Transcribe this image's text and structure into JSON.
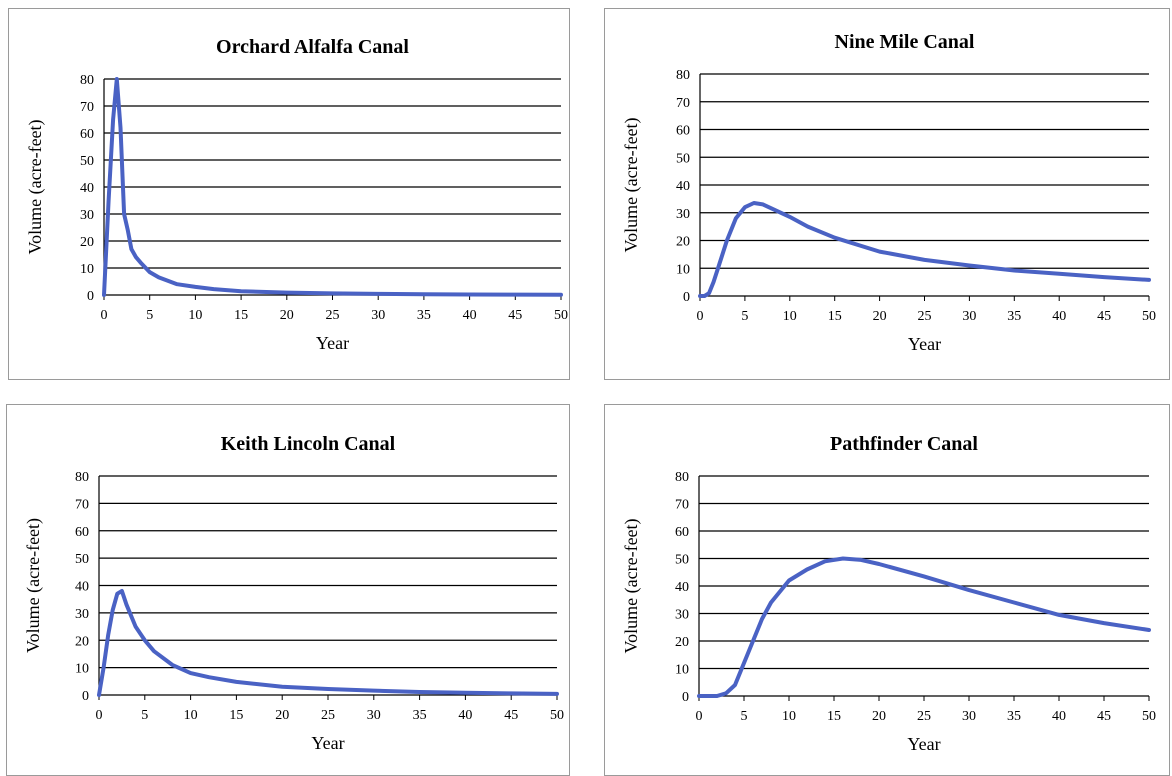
{
  "style": {
    "line_color": "#4a62c4",
    "grid_color": "#000000",
    "frame_color": "#9a9a9a"
  },
  "chart_data": [
    {
      "type": "line",
      "title": "Orchard Alfalfa Canal",
      "xlabel": "Year",
      "ylabel": "Volume (acre-feet)",
      "xlim": [
        0,
        50
      ],
      "ylim": [
        0,
        80
      ],
      "xticks": [
        "0",
        "5",
        "10",
        "15",
        "20",
        "25",
        "30",
        "35",
        "40",
        "45",
        "50"
      ],
      "yticks": [
        "0",
        "10",
        "20",
        "30",
        "40",
        "50",
        "60",
        "70",
        "80"
      ],
      "grid": "horizontal",
      "legend": "none",
      "series": [
        {
          "x": [
            0,
            0.5,
            1,
            1.4,
            1.8,
            2.2,
            2.6,
            3,
            3.5,
            4,
            5,
            6,
            8,
            10,
            12,
            15,
            20,
            25,
            30,
            35,
            40,
            45,
            50
          ],
          "y": [
            0,
            35,
            65,
            80,
            62,
            30,
            24,
            17,
            14,
            12,
            8.5,
            6.5,
            4,
            3,
            2.2,
            1.4,
            0.9,
            0.6,
            0.4,
            0.3,
            0.2,
            0.15,
            0.1
          ]
        }
      ]
    },
    {
      "type": "line",
      "title": "Nine Mile Canal",
      "xlabel": "Year",
      "ylabel": "Volume (acre-feet)",
      "xlim": [
        0,
        50
      ],
      "ylim": [
        0,
        80
      ],
      "xticks": [
        "0",
        "5",
        "10",
        "15",
        "20",
        "25",
        "30",
        "35",
        "40",
        "45",
        "50"
      ],
      "yticks": [
        "0",
        "10",
        "20",
        "30",
        "40",
        "50",
        "60",
        "70",
        "80"
      ],
      "grid": "horizontal",
      "legend": "none",
      "series": [
        {
          "x": [
            0,
            0.5,
            1,
            1.5,
            2,
            3,
            4,
            5,
            6,
            7,
            8,
            10,
            12,
            15,
            20,
            25,
            30,
            35,
            40,
            45,
            50
          ],
          "y": [
            0,
            0,
            1,
            5,
            10,
            20,
            28,
            32,
            33.5,
            33,
            31.5,
            28.5,
            25,
            21,
            16,
            13,
            11,
            9.2,
            8,
            6.8,
            5.8
          ]
        }
      ]
    },
    {
      "type": "line",
      "title": "Keith Lincoln Canal",
      "xlabel": "Year",
      "ylabel": "Volume (acre-feet)",
      "xlim": [
        0,
        50
      ],
      "ylim": [
        0,
        80
      ],
      "xticks": [
        "0",
        "5",
        "10",
        "15",
        "20",
        "25",
        "30",
        "35",
        "40",
        "45",
        "50"
      ],
      "yticks": [
        "0",
        "10",
        "20",
        "30",
        "40",
        "50",
        "60",
        "70",
        "80"
      ],
      "grid": "horizontal",
      "legend": "none",
      "series": [
        {
          "x": [
            0,
            0.5,
            1,
            1.5,
            2,
            2.5,
            3,
            4,
            5,
            6,
            8,
            10,
            12,
            15,
            20,
            25,
            30,
            35,
            40,
            45,
            50
          ],
          "y": [
            0,
            10,
            22,
            31,
            37,
            38,
            33,
            25,
            20,
            16,
            11,
            8,
            6.5,
            4.8,
            3,
            2.2,
            1.6,
            1.1,
            0.8,
            0.6,
            0.4
          ]
        }
      ]
    },
    {
      "type": "line",
      "title": "Pathfinder Canal",
      "xlabel": "Year",
      "ylabel": "Volume (acre-feet)",
      "xlim": [
        0,
        50
      ],
      "ylim": [
        0,
        80
      ],
      "xticks": [
        "0",
        "5",
        "10",
        "15",
        "20",
        "25",
        "30",
        "35",
        "40",
        "45",
        "50"
      ],
      "yticks": [
        "0",
        "10",
        "20",
        "30",
        "40",
        "50",
        "60",
        "70",
        "80"
      ],
      "grid": "horizontal",
      "legend": "none",
      "series": [
        {
          "x": [
            0,
            2,
            3,
            4,
            5,
            6,
            7,
            8,
            9,
            10,
            12,
            14,
            16,
            18,
            20,
            25,
            30,
            35,
            40,
            45,
            50
          ],
          "y": [
            0,
            0,
            1,
            4,
            12,
            20,
            28,
            34,
            38,
            42,
            46,
            49,
            50,
            49.5,
            48,
            43.5,
            38.5,
            34,
            29.5,
            26.5,
            24
          ]
        }
      ]
    }
  ]
}
